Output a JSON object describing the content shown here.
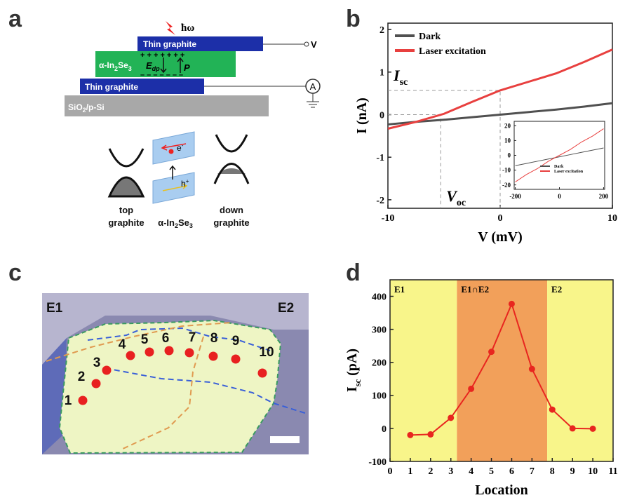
{
  "panel_labels": [
    "a",
    "b",
    "c",
    "d"
  ],
  "diagram": {
    "photon": "ħω",
    "top_electrode": "Thin graphite",
    "voltage": "V",
    "layer": [
      "α-In",
      "2",
      "Se",
      "3"
    ],
    "plus": "+  +  +  +  +  +  +",
    "minus": "–  –  –  –  –  –  –",
    "field": [
      "E",
      "dp"
    ],
    "polarization": "P",
    "bottom_electrode": "Thin graphite",
    "ammeter": "A",
    "substrate": [
      "SiO",
      "2",
      "/p-Si"
    ],
    "electron": [
      "e",
      "-"
    ],
    "hole": [
      "h",
      "+"
    ],
    "left_label": [
      "top",
      "graphite"
    ],
    "middle_label": [
      "α-In",
      "2",
      "Se",
      "3"
    ],
    "right_label": [
      "down",
      "graphite"
    ]
  },
  "photo": {
    "electrodes": [
      "E1",
      "E2"
    ],
    "points": [
      "1",
      "2",
      "3",
      "4",
      "5",
      "6",
      "7",
      "8",
      "9",
      "10"
    ]
  },
  "chart_data": [
    {
      "type": "line",
      "x_label": "V (mV)",
      "y_label": "I (nA)",
      "xlim": [
        -10,
        10
      ],
      "xticks": [
        -10,
        0,
        10
      ],
      "ylim": [
        -2.2,
        2.15
      ],
      "yticks": [
        -2,
        -1,
        0,
        1,
        2
      ],
      "x": [
        -10,
        -7.5,
        -5,
        -2.5,
        0,
        2.5,
        5,
        7.5,
        10
      ],
      "series": [
        {
          "name": "Dark",
          "color": "#505050",
          "values": [
            -0.23,
            -0.17,
            -0.12,
            -0.06,
            0.0,
            0.06,
            0.12,
            0.19,
            0.27
          ]
        },
        {
          "name": "Laser excitation",
          "color": "#e8403f",
          "values": [
            -0.33,
            -0.17,
            0.02,
            0.3,
            0.57,
            0.77,
            0.97,
            1.24,
            1.53
          ]
        }
      ],
      "annotations": [
        {
          "main": "I",
          "sub": "sc",
          "x": 0,
          "y": 0.57
        },
        {
          "main": "V",
          "sub": "oc",
          "x": -5.3,
          "y": 0
        }
      ],
      "inset": {
        "xlim": [
          -205,
          205
        ],
        "xticks": [
          -200,
          0,
          200
        ],
        "ylim": [
          -23,
          23
        ],
        "yticks": [
          -20,
          -10,
          0,
          10,
          20
        ],
        "x": [
          -200,
          -150,
          -100,
          -50,
          0,
          50,
          100,
          150,
          200
        ],
        "series": [
          {
            "name": "Dark",
            "color": "#505050",
            "values": [
              -7,
              -5.5,
              -4,
              -2.5,
              -1,
              0.5,
              2,
              3.5,
              5
            ]
          },
          {
            "name": "Laser excitation",
            "color": "#e8403f",
            "values": [
              -18,
              -13,
              -9,
              -4,
              0,
              4,
              9,
              13,
              18
            ]
          }
        ]
      }
    },
    {
      "type": "line",
      "x_label": "Location",
      "y_label": [
        "I",
        "sc",
        " (pA)"
      ],
      "xlim": [
        0,
        11
      ],
      "xticks": [
        0,
        1,
        2,
        3,
        4,
        5,
        6,
        7,
        8,
        9,
        10,
        11
      ],
      "ylim": [
        -100,
        450
      ],
      "yticks": [
        -100,
        0,
        100,
        200,
        300,
        400
      ],
      "x": [
        1,
        2,
        3,
        4,
        5,
        6,
        7,
        8,
        9,
        10
      ],
      "values": [
        -20,
        -18,
        32,
        120,
        232,
        377,
        180,
        57,
        0,
        -1
      ],
      "color": "#e8261f",
      "regions": [
        {
          "label": "E1",
          "from": 0,
          "to": 3.3,
          "color": "#f8f58a"
        },
        {
          "label": "E1∩E2",
          "from": 3.3,
          "to": 7.75,
          "color": "#f2a05a"
        },
        {
          "label": "E2",
          "from": 7.75,
          "to": 11,
          "color": "#f8f58a"
        }
      ]
    }
  ]
}
